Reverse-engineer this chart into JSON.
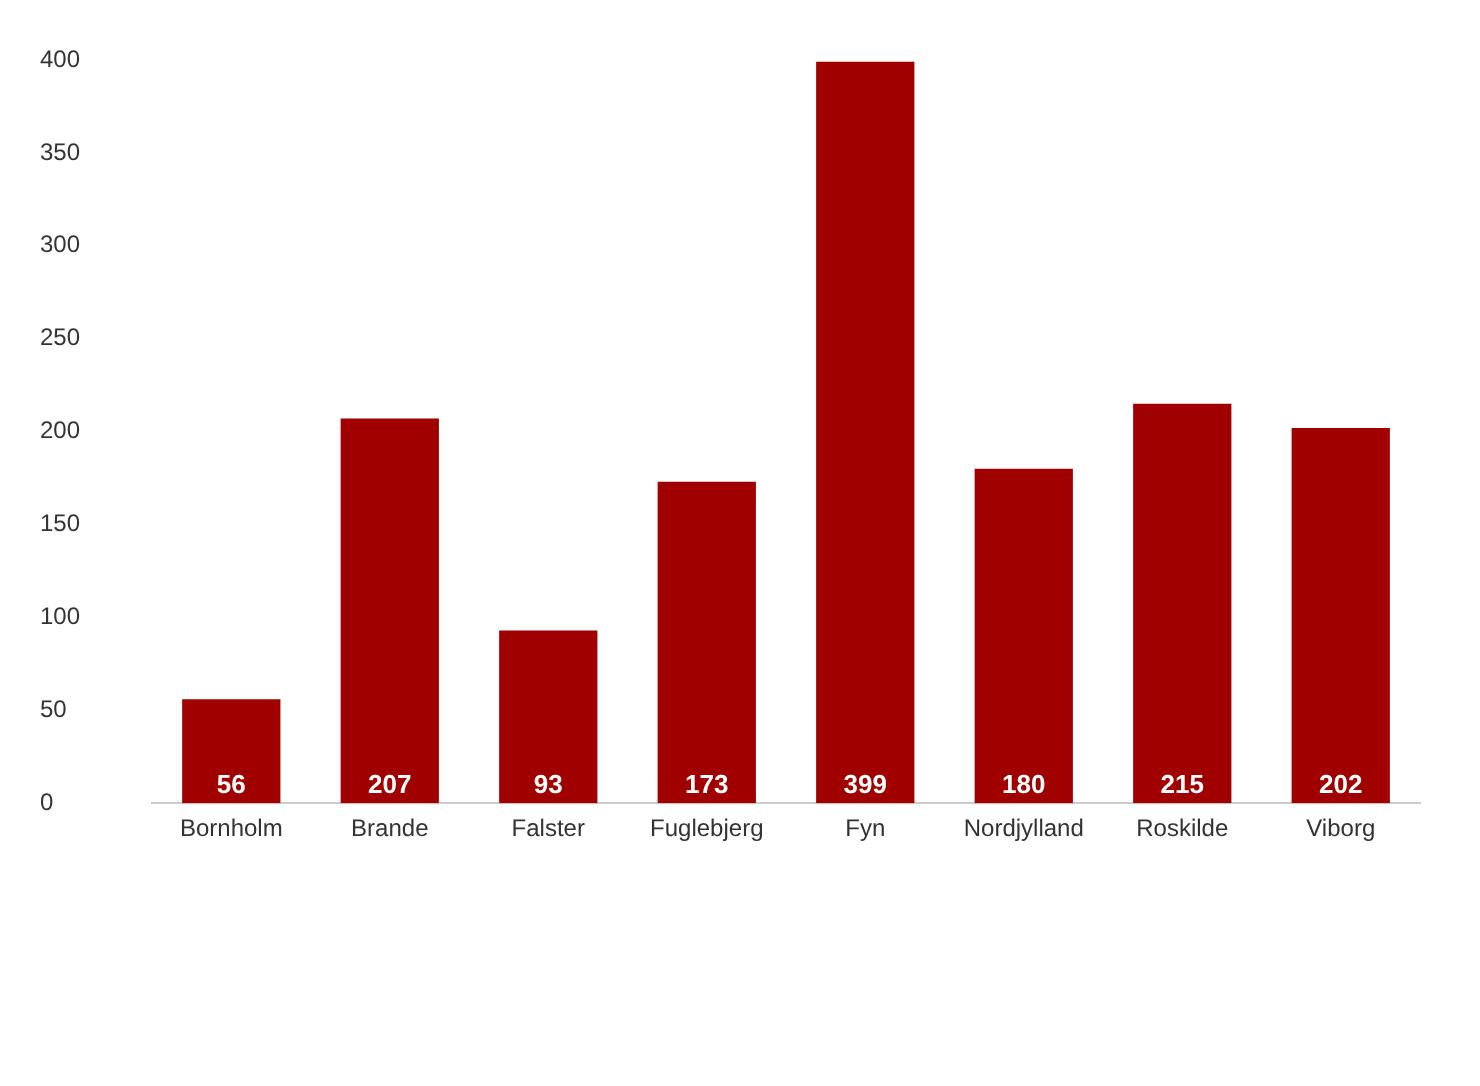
{
  "chart_data": {
    "type": "bar",
    "categories": [
      "Bornholm",
      "Brande",
      "Falster",
      "Fuglebjerg",
      "Fyn",
      "Nordjylland",
      "Roskilde",
      "Viborg"
    ],
    "values": [
      56,
      207,
      93,
      173,
      399,
      180,
      215,
      202
    ],
    "color": "#a00000",
    "ylim": [
      0,
      400
    ],
    "yticks": [
      0,
      50,
      100,
      150,
      200,
      250,
      300,
      350,
      400
    ],
    "grid": false,
    "legend": false,
    "data_labels": true
  }
}
